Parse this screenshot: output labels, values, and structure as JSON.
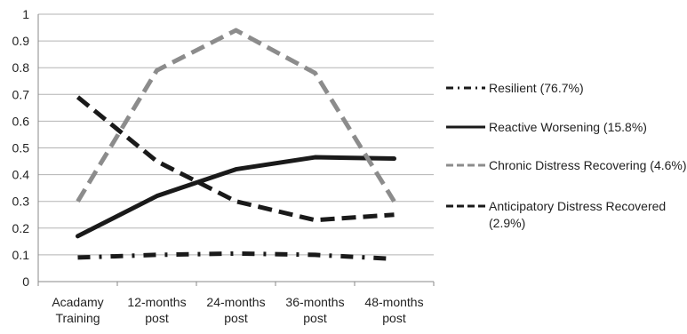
{
  "chart_data": {
    "type": "line",
    "title": "",
    "xlabel": "",
    "ylabel": "",
    "categories": [
      [
        "Acadamy",
        "Training"
      ],
      [
        "12-months",
        "post"
      ],
      [
        "24-months",
        "post"
      ],
      [
        "36-months",
        "post"
      ],
      [
        "48-months",
        "post"
      ]
    ],
    "ylim": [
      0,
      1
    ],
    "yticks": [
      "0",
      "0.1",
      "0.2",
      "0.3",
      "0.4",
      "0.5",
      "0.6",
      "0.7",
      "0.8",
      "0.9",
      "1"
    ],
    "grid": true,
    "legend_position": "right",
    "series": [
      {
        "name": "Resilient (76.7%)",
        "values": [
          0.09,
          0.1,
          0.105,
          0.1,
          0.085
        ],
        "color": "#1a1a1a",
        "style": "dash-dot"
      },
      {
        "name": "Reactive Worsening (15.8%)",
        "values": [
          0.17,
          0.32,
          0.42,
          0.465,
          0.46
        ],
        "color": "#1a1a1a",
        "style": "solid"
      },
      {
        "name": "Chronic Distress Recovering (4.6%)",
        "values": [
          0.3,
          0.79,
          0.94,
          0.78,
          0.3
        ],
        "color": "#8c8c8c",
        "style": "dashed"
      },
      {
        "name": "Anticipatory Distress Recovered (2.9%)",
        "values": [
          0.69,
          0.45,
          0.3,
          0.23,
          0.25
        ],
        "color": "#1a1a1a",
        "style": "dashed"
      }
    ]
  }
}
